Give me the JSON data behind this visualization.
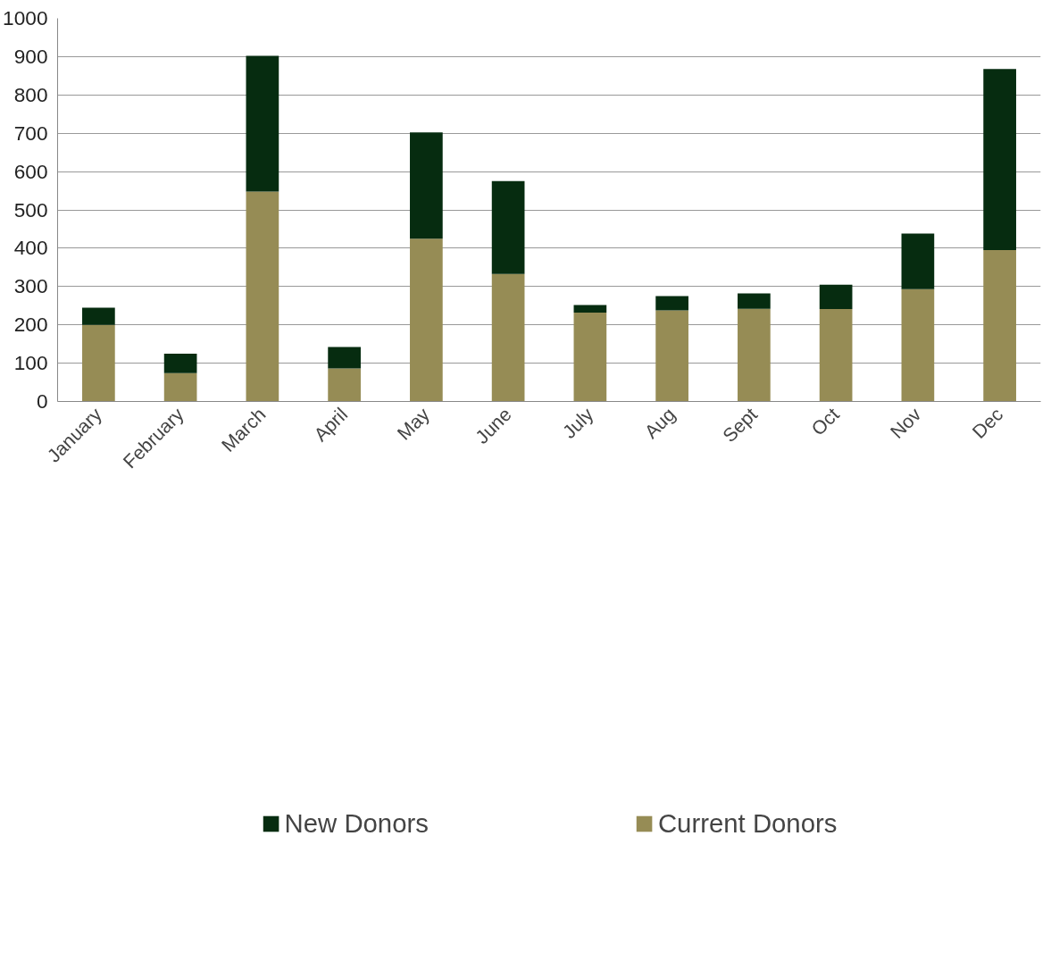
{
  "chart_data": {
    "type": "bar",
    "stacked": true,
    "categories": [
      "January",
      "February",
      "March",
      "April",
      "May",
      "June",
      "July",
      "Aug",
      "Sept",
      "Oct",
      "Nov",
      "Dec"
    ],
    "series": [
      {
        "name": "Current Donors",
        "color": "#968c55",
        "values": [
          200,
          74,
          548,
          86,
          425,
          333,
          232,
          238,
          242,
          241,
          293,
          395
        ]
      },
      {
        "name": "New Donors",
        "color": "#062c10",
        "values": [
          45,
          51,
          354,
          56,
          277,
          242,
          20,
          37,
          40,
          64,
          145,
          473
        ]
      }
    ],
    "ylim": [
      0,
      1000
    ],
    "yticks": [
      0,
      100,
      200,
      300,
      400,
      500,
      600,
      700,
      800,
      900,
      1000
    ],
    "grid": "y",
    "legend": "bottom"
  }
}
